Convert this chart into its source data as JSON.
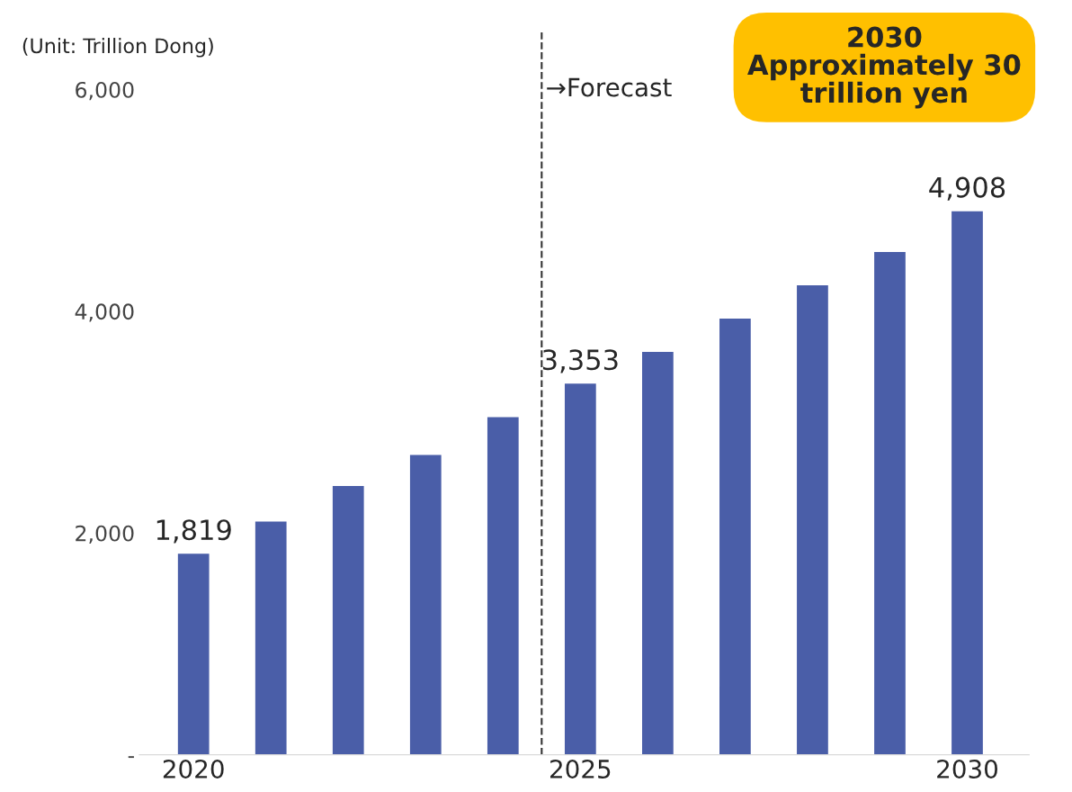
{
  "chart_data": {
    "type": "bar",
    "ylabel": "(Unit: Trillion Dong)",
    "x": [
      2020,
      2021,
      2022,
      2023,
      2024,
      2025,
      2026,
      2027,
      2028,
      2029,
      2030
    ],
    "values": [
      1819,
      2110,
      2430,
      2710,
      3050,
      3353,
      3640,
      3940,
      4240,
      4540,
      4908
    ],
    "value_labels": [
      "1,819",
      null,
      null,
      null,
      null,
      "3,353",
      null,
      null,
      null,
      null,
      "4,908"
    ],
    "color": "#4a5ea8",
    "xlim": [
      2019.3,
      2030.8
    ],
    "xticks": [
      2020,
      2025,
      2030
    ],
    "ylim": [
      0,
      6000
    ],
    "yticks": [
      {
        "value": 0,
        "label": "-"
      },
      {
        "value": 2000,
        "label": "2,000"
      },
      {
        "value": 4000,
        "label": "4,000"
      },
      {
        "value": 6000,
        "label": "6,000"
      }
    ],
    "ref_lines": [
      {
        "axis": "x",
        "value": 2024.5,
        "label": "→Forecast",
        "color": "#333333",
        "line_style": "dashed"
      }
    ],
    "annotations": [
      "2030\nApproximately 30\ntrillion yen"
    ],
    "grid": false
  }
}
